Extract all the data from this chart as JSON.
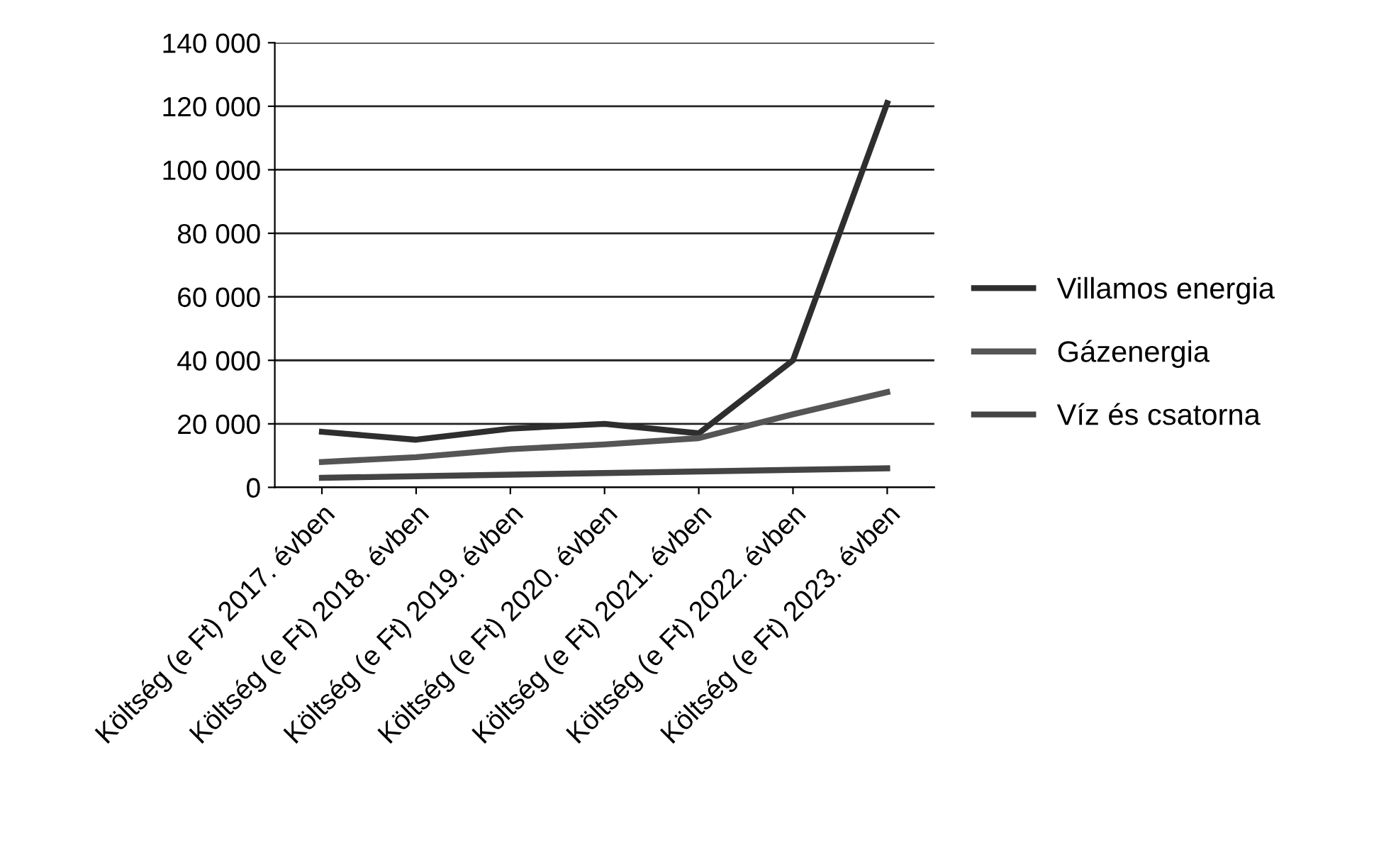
{
  "chart_data": {
    "type": "line",
    "categories": [
      "Költség (e Ft) 2017. évben",
      "Költség (e Ft) 2018. évben",
      "Költség (e Ft) 2019. évben",
      "Költség (e Ft) 2020. évben",
      "Költség (e Ft) 2021. évben",
      "Költség (e Ft) 2022. évben",
      "Költség (e Ft) 2023. évben"
    ],
    "series": [
      {
        "name": "Villamos energia",
        "color": "#2e2e2e",
        "values": [
          17500,
          15000,
          18500,
          20000,
          17000,
          40000,
          121000
        ]
      },
      {
        "name": "Gázenergia",
        "color": "#555555",
        "values": [
          8000,
          9500,
          12000,
          13500,
          15500,
          23000,
          30000
        ]
      },
      {
        "name": "Víz és csatorna",
        "color": "#444444",
        "values": [
          3000,
          3500,
          4000,
          4500,
          5000,
          5500,
          6000
        ]
      }
    ],
    "ylim": [
      0,
      140000
    ],
    "yticks": [
      {
        "value": 0,
        "label": "0"
      },
      {
        "value": 20000,
        "label": "20 000"
      },
      {
        "value": 40000,
        "label": "40 000"
      },
      {
        "value": 60000,
        "label": "60 000"
      },
      {
        "value": 80000,
        "label": "80 000"
      },
      {
        "value": 100000,
        "label": "100 000"
      },
      {
        "value": 120000,
        "label": "120 000"
      },
      {
        "value": 140000,
        "label": "140 000"
      }
    ],
    "grid": "y",
    "legend": "right",
    "line_style": "solid",
    "marker": "none"
  }
}
